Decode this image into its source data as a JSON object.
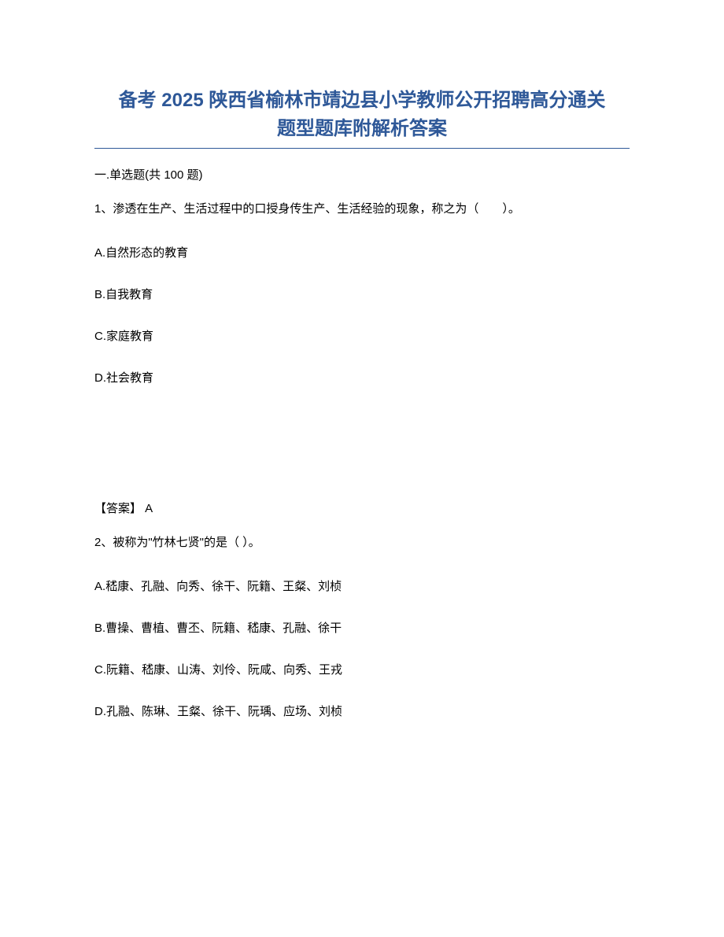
{
  "title": {
    "line1": "备考 2025 陕西省榆林市靖边县小学教师公开招聘高分通关",
    "line2": "题型题库附解析答案",
    "color": "#2e5898",
    "fontsize": 24
  },
  "section": {
    "header": "一.单选题(共 100 题)"
  },
  "question1": {
    "text": "1、渗透在生产、生活过程中的口授身传生产、生活经验的现象，称之为（　　）。",
    "options": {
      "a": "A.自然形态的教育",
      "b": "B.自我教育",
      "c": "C.家庭教育",
      "d": "D.社会教育"
    },
    "answer_label": "【答案】 A"
  },
  "question2": {
    "text": "2、被称为\"竹林七贤\"的是（ ）。",
    "options": {
      "a": "A.嵇康、孔融、向秀、徐干、阮籍、王粲、刘桢",
      "b": "B.曹操、曹植、曹丕、阮籍、嵇康、孔融、徐干",
      "c": "C.阮籍、嵇康、山涛、刘伶、阮咸、向秀、王戎",
      "d": "D.孔融、陈琳、王粲、徐干、阮瑀、应场、刘桢"
    }
  },
  "colors": {
    "title": "#2e5898",
    "text": "#000000",
    "background": "#ffffff"
  },
  "fonts": {
    "title_size": 24,
    "body_size": 15
  }
}
